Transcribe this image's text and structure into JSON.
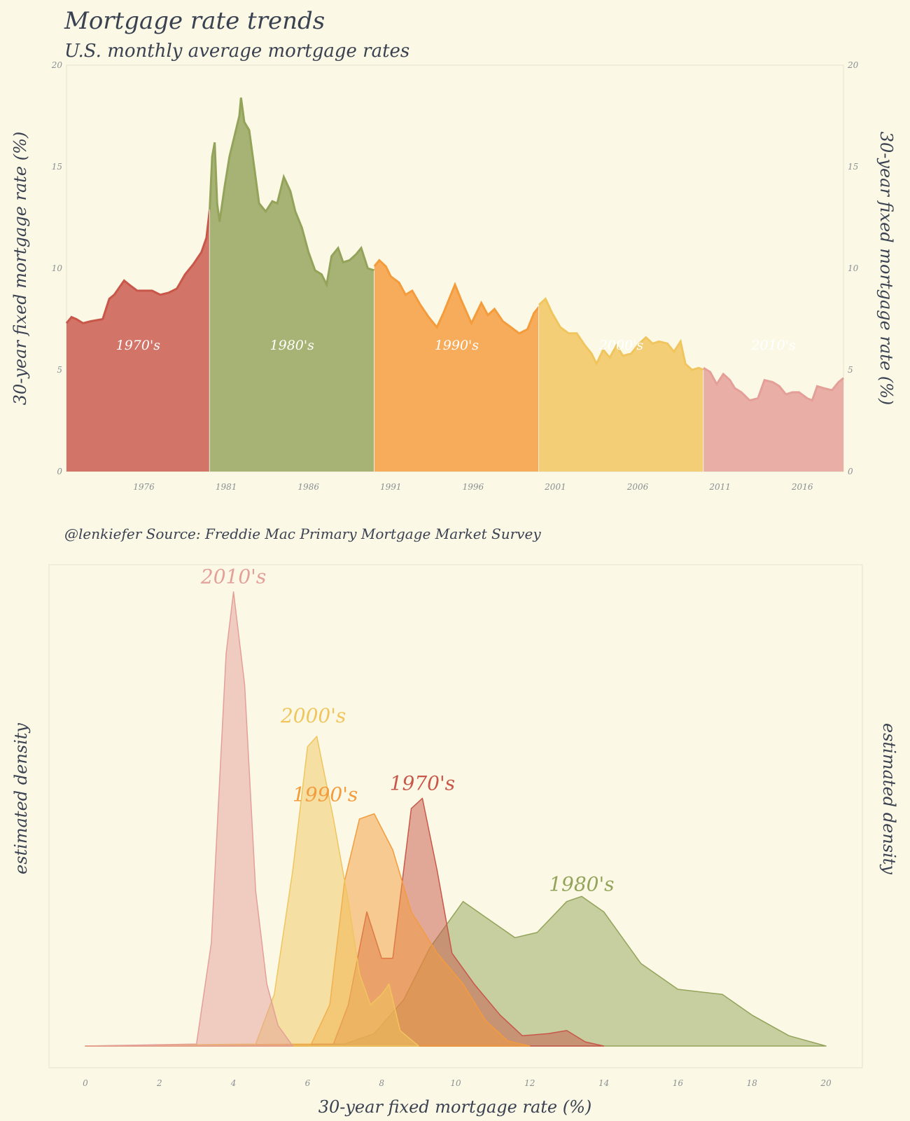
{
  "header": {
    "title": "Mortgage rate trends",
    "subtitle": "U.S. monthly average mortgage rates",
    "caption": "@lenkiefer  Source: Freddie Mac Primary Mortgage Market Survey"
  },
  "colors": {
    "background": "#fbf9e6",
    "1970's": "#c8574a",
    "1980's": "#93a35a",
    "1990's": "#f49b3c",
    "2000's": "#f0c55e",
    "2010's": "#e49f98"
  },
  "chart_data": [
    {
      "type": "area",
      "title": "Mortgage rate trends",
      "subtitle": "U.S. monthly average mortgage rates",
      "ylabel": "30-year fixed mortgage rate (%)",
      "ylabel_right": "30-year fixed mortgage rate (%)",
      "xlim": [
        1971.3,
        2018.5
      ],
      "ylim": [
        0,
        20
      ],
      "x_ticks": [
        "1976",
        "1981",
        "1986",
        "1991",
        "1996",
        "2001",
        "2006",
        "2011",
        "2016"
      ],
      "y_ticks": [
        "0",
        "5",
        "10",
        "15",
        "20"
      ],
      "series": [
        {
          "name": "1970's",
          "label": "1970's",
          "points": [
            [
              1971.3,
              7.3
            ],
            [
              1971.6,
              7.6
            ],
            [
              1971.9,
              7.5
            ],
            [
              1972.3,
              7.3
            ],
            [
              1972.8,
              7.4
            ],
            [
              1973.5,
              7.5
            ],
            [
              1973.9,
              8.5
            ],
            [
              1974.2,
              8.7
            ],
            [
              1974.8,
              9.4
            ],
            [
              1975.1,
              9.2
            ],
            [
              1975.6,
              8.9
            ],
            [
              1976.0,
              8.9
            ],
            [
              1976.5,
              8.9
            ],
            [
              1977.0,
              8.7
            ],
            [
              1977.5,
              8.8
            ],
            [
              1978.0,
              9.0
            ],
            [
              1978.5,
              9.7
            ],
            [
              1979.0,
              10.2
            ],
            [
              1979.5,
              10.8
            ],
            [
              1979.8,
              11.5
            ],
            [
              1980.0,
              12.9
            ]
          ]
        },
        {
          "name": "1980's",
          "label": "1980's",
          "points": [
            [
              1980.0,
              12.9
            ],
            [
              1980.15,
              15.5
            ],
            [
              1980.3,
              16.2
            ],
            [
              1980.45,
              13.2
            ],
            [
              1980.6,
              12.3
            ],
            [
              1980.9,
              14.0
            ],
            [
              1981.2,
              15.5
            ],
            [
              1981.5,
              16.5
            ],
            [
              1981.8,
              17.5
            ],
            [
              1981.9,
              18.4
            ],
            [
              1982.1,
              17.2
            ],
            [
              1982.4,
              16.8
            ],
            [
              1982.7,
              15.0
            ],
            [
              1983.0,
              13.2
            ],
            [
              1983.4,
              12.8
            ],
            [
              1983.8,
              13.3
            ],
            [
              1984.1,
              13.2
            ],
            [
              1984.5,
              14.5
            ],
            [
              1984.9,
              13.8
            ],
            [
              1985.2,
              12.8
            ],
            [
              1985.6,
              12.0
            ],
            [
              1986.0,
              10.8
            ],
            [
              1986.4,
              9.9
            ],
            [
              1986.8,
              9.7
            ],
            [
              1987.1,
              9.2
            ],
            [
              1987.4,
              10.6
            ],
            [
              1987.8,
              11.0
            ],
            [
              1988.1,
              10.3
            ],
            [
              1988.5,
              10.4
            ],
            [
              1988.9,
              10.7
            ],
            [
              1989.2,
              11.0
            ],
            [
              1989.6,
              10.0
            ],
            [
              1990.0,
              9.9
            ]
          ]
        },
        {
          "name": "1990's",
          "label": "1990's",
          "points": [
            [
              1990.0,
              10.1
            ],
            [
              1990.3,
              10.4
            ],
            [
              1990.7,
              10.1
            ],
            [
              1991.0,
              9.6
            ],
            [
              1991.5,
              9.3
            ],
            [
              1991.9,
              8.7
            ],
            [
              1992.3,
              8.9
            ],
            [
              1992.8,
              8.2
            ],
            [
              1993.3,
              7.6
            ],
            [
              1993.8,
              7.1
            ],
            [
              1994.2,
              7.8
            ],
            [
              1994.6,
              8.6
            ],
            [
              1994.9,
              9.2
            ],
            [
              1995.3,
              8.4
            ],
            [
              1995.9,
              7.3
            ],
            [
              1996.2,
              7.8
            ],
            [
              1996.5,
              8.3
            ],
            [
              1996.9,
              7.7
            ],
            [
              1997.3,
              8.0
            ],
            [
              1997.8,
              7.4
            ],
            [
              1998.3,
              7.1
            ],
            [
              1998.8,
              6.8
            ],
            [
              1999.3,
              7.0
            ],
            [
              1999.7,
              7.8
            ],
            [
              2000.0,
              8.1
            ]
          ]
        },
        {
          "name": "2000's",
          "label": "2000's",
          "points": [
            [
              2000.0,
              8.2
            ],
            [
              2000.4,
              8.5
            ],
            [
              2000.8,
              7.8
            ],
            [
              2001.3,
              7.1
            ],
            [
              2001.8,
              6.8
            ],
            [
              2002.3,
              6.8
            ],
            [
              2002.8,
              6.2
            ],
            [
              2003.2,
              5.8
            ],
            [
              2003.5,
              5.3
            ],
            [
              2003.9,
              6.0
            ],
            [
              2004.3,
              5.6
            ],
            [
              2004.7,
              6.2
            ],
            [
              2005.1,
              5.7
            ],
            [
              2005.6,
              5.8
            ],
            [
              2006.1,
              6.3
            ],
            [
              2006.5,
              6.6
            ],
            [
              2006.9,
              6.3
            ],
            [
              2007.3,
              6.4
            ],
            [
              2007.8,
              6.3
            ],
            [
              2008.2,
              5.9
            ],
            [
              2008.6,
              6.4
            ],
            [
              2008.9,
              5.3
            ],
            [
              2009.3,
              5.0
            ],
            [
              2009.7,
              5.1
            ],
            [
              2010.0,
              5.0
            ]
          ]
        },
        {
          "name": "2010's",
          "label": "2010's",
          "points": [
            [
              2010.0,
              5.1
            ],
            [
              2010.4,
              4.9
            ],
            [
              2010.8,
              4.3
            ],
            [
              2011.2,
              4.8
            ],
            [
              2011.6,
              4.5
            ],
            [
              2011.9,
              4.1
            ],
            [
              2012.3,
              3.9
            ],
            [
              2012.8,
              3.5
            ],
            [
              2013.3,
              3.6
            ],
            [
              2013.7,
              4.5
            ],
            [
              2014.2,
              4.4
            ],
            [
              2014.6,
              4.2
            ],
            [
              2015.0,
              3.8
            ],
            [
              2015.4,
              3.9
            ],
            [
              2015.8,
              3.9
            ],
            [
              2016.3,
              3.6
            ],
            [
              2016.6,
              3.5
            ],
            [
              2016.9,
              4.2
            ],
            [
              2017.3,
              4.1
            ],
            [
              2017.8,
              4.0
            ],
            [
              2018.2,
              4.4
            ],
            [
              2018.5,
              4.6
            ]
          ]
        }
      ]
    },
    {
      "type": "area",
      "xlabel": "30-year fixed mortgage rate (%)",
      "ylabel": "estimated density",
      "ylabel_right": "estimated density",
      "xlim": [
        0,
        20
      ],
      "x_ticks": [
        "0",
        "2",
        "4",
        "6",
        "8",
        "10",
        "12",
        "14",
        "16",
        "18",
        "20"
      ],
      "series": [
        {
          "name": "1980's",
          "label": "1980's",
          "points": [
            [
              0,
              0
            ],
            [
              7.0,
              0.002
            ],
            [
              7.8,
              0.012
            ],
            [
              8.6,
              0.045
            ],
            [
              9.3,
              0.095
            ],
            [
              10.2,
              0.14
            ],
            [
              11.0,
              0.12
            ],
            [
              11.6,
              0.105
            ],
            [
              12.2,
              0.11
            ],
            [
              13.0,
              0.14
            ],
            [
              13.4,
              0.145
            ],
            [
              14.0,
              0.13
            ],
            [
              15.0,
              0.08
            ],
            [
              16.0,
              0.055
            ],
            [
              17.2,
              0.05
            ],
            [
              18.0,
              0.03
            ],
            [
              19.0,
              0.01
            ],
            [
              20,
              0
            ]
          ]
        },
        {
          "name": "1970's",
          "label": "1970's",
          "points": [
            [
              0,
              0
            ],
            [
              6.7,
              0.002
            ],
            [
              7.1,
              0.04
            ],
            [
              7.6,
              0.13
            ],
            [
              8.0,
              0.085
            ],
            [
              8.3,
              0.085
            ],
            [
              8.8,
              0.23
            ],
            [
              9.1,
              0.24
            ],
            [
              9.5,
              0.17
            ],
            [
              9.9,
              0.09
            ],
            [
              10.5,
              0.06
            ],
            [
              11.2,
              0.03
            ],
            [
              11.8,
              0.01
            ],
            [
              12.5,
              0.012
            ],
            [
              13.0,
              0.015
            ],
            [
              13.5,
              0.004
            ],
            [
              14.0,
              0
            ]
          ]
        },
        {
          "name": "1990's",
          "label": "1990's",
          "points": [
            [
              0,
              0
            ],
            [
              6.1,
              0.002
            ],
            [
              6.6,
              0.04
            ],
            [
              7.0,
              0.16
            ],
            [
              7.4,
              0.22
            ],
            [
              7.8,
              0.225
            ],
            [
              8.3,
              0.19
            ],
            [
              8.8,
              0.13
            ],
            [
              9.5,
              0.09
            ],
            [
              10.2,
              0.06
            ],
            [
              10.8,
              0.025
            ],
            [
              11.4,
              0.005
            ],
            [
              12.0,
              0
            ]
          ]
        },
        {
          "name": "2000's",
          "label": "2000's",
          "points": [
            [
              0,
              0
            ],
            [
              4.6,
              0.002
            ],
            [
              5.1,
              0.05
            ],
            [
              5.6,
              0.17
            ],
            [
              6.0,
              0.29
            ],
            [
              6.25,
              0.3
            ],
            [
              6.7,
              0.22
            ],
            [
              7.1,
              0.14
            ],
            [
              7.4,
              0.07
            ],
            [
              7.7,
              0.04
            ],
            [
              8.0,
              0.05
            ],
            [
              8.2,
              0.06
            ],
            [
              8.5,
              0.015
            ],
            [
              9.0,
              0
            ]
          ]
        },
        {
          "name": "2010's",
          "label": "2010's",
          "points": [
            [
              0,
              0
            ],
            [
              3.0,
              0.002
            ],
            [
              3.4,
              0.1
            ],
            [
              3.8,
              0.38
            ],
            [
              4.0,
              0.44
            ],
            [
              4.3,
              0.35
            ],
            [
              4.6,
              0.15
            ],
            [
              4.9,
              0.06
            ],
            [
              5.2,
              0.02
            ],
            [
              5.6,
              0
            ]
          ]
        }
      ]
    }
  ]
}
